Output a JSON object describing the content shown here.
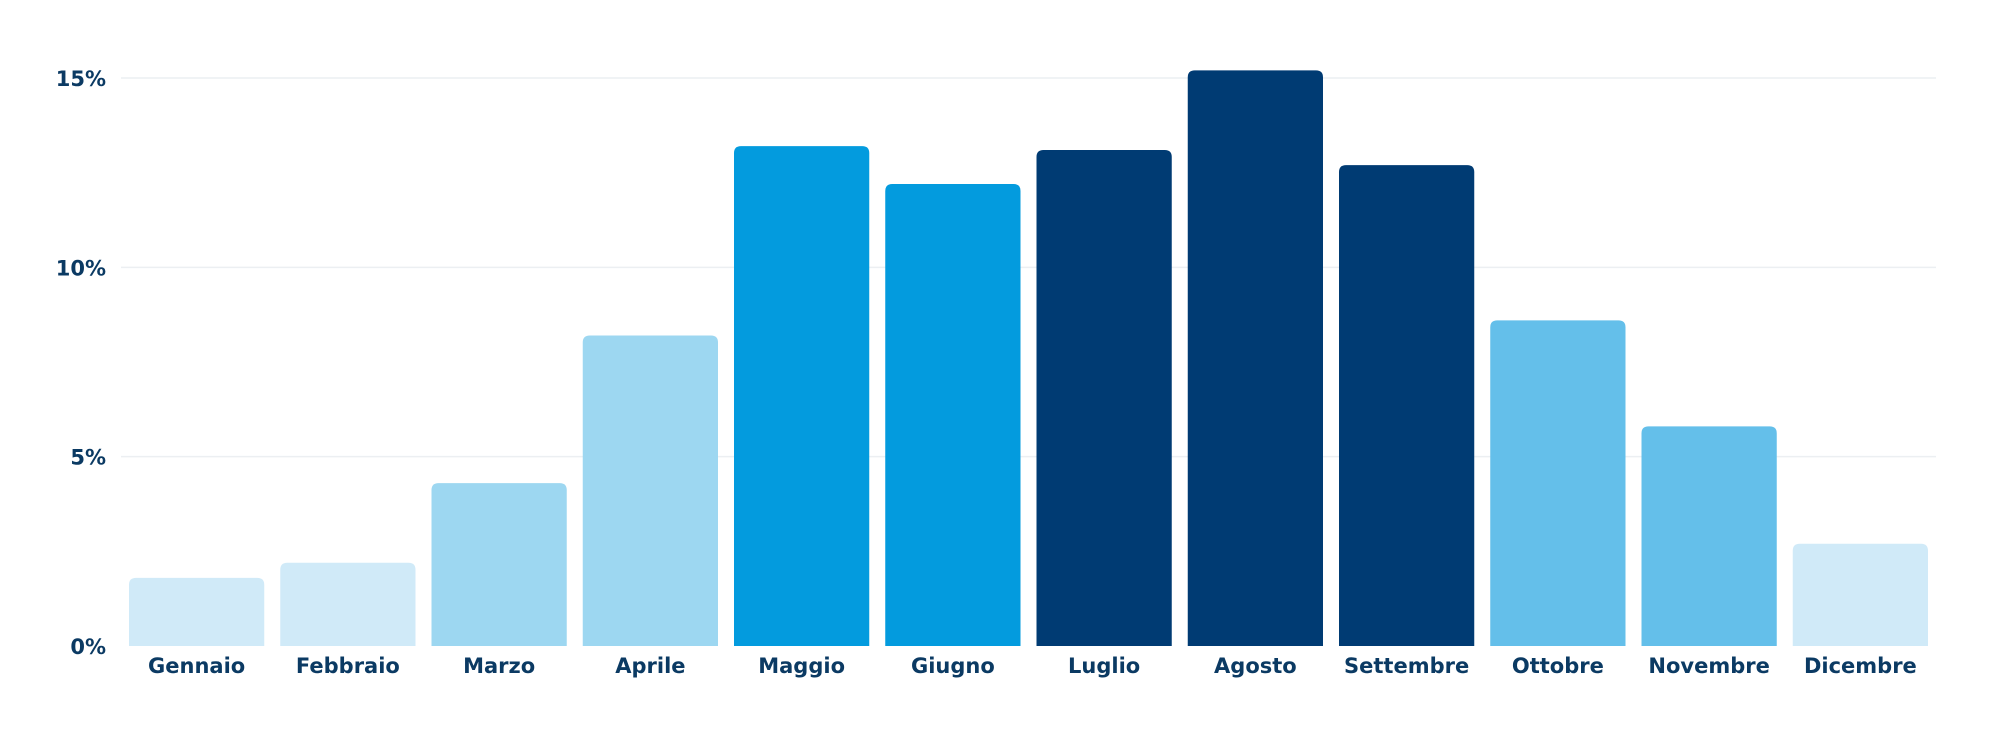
{
  "chart_data": {
    "type": "bar",
    "categories": [
      "Gennaio",
      "Febbraio",
      "Marzo",
      "Aprile",
      "Maggio",
      "Giugno",
      "Luglio",
      "Agosto",
      "Settembre",
      "Ottobre",
      "Novembre",
      "Dicembre"
    ],
    "values": [
      1.8,
      2.2,
      4.3,
      8.2,
      13.2,
      12.2,
      13.1,
      15.2,
      12.7,
      8.6,
      5.8,
      2.7
    ],
    "colors": [
      "#d0eaf8",
      "#d0eaf8",
      "#9dd7f1",
      "#9dd7f1",
      "#039bde",
      "#039bde",
      "#003b73",
      "#003b73",
      "#003b73",
      "#64bfea",
      "#64bfea",
      "#d0eaf8"
    ],
    "ylim": [
      0,
      15
    ],
    "yticks": [
      0,
      5,
      10,
      15
    ],
    "ytick_labels": [
      "0%",
      "5%",
      "10%",
      "15%"
    ],
    "grid": true,
    "title": "",
    "xlabel": "",
    "ylabel": ""
  }
}
